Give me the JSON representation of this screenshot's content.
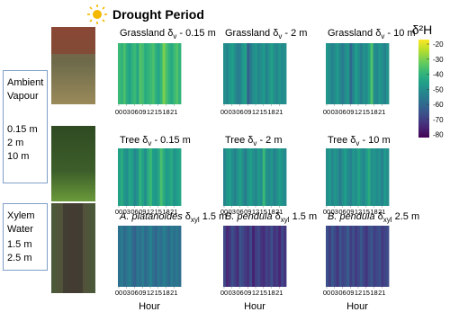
{
  "chart_data": {
    "type": "heatmap",
    "title": "Drought Period",
    "colorbar_label": "δ²H",
    "symbol": "δ",
    "xlabel": "Hour",
    "colormap": "viridis",
    "clim": [
      -82,
      -17
    ],
    "cticks": [
      -20,
      -30,
      -40,
      -50,
      -60,
      -70,
      -80
    ],
    "xlim": [
      0,
      24
    ],
    "xticks": [
      {
        "value": 0,
        "label": "00"
      },
      {
        "value": 3,
        "label": "03"
      },
      {
        "value": 6,
        "label": "06"
      },
      {
        "value": 9,
        "label": "09"
      },
      {
        "value": 12,
        "label": "12"
      },
      {
        "value": 15,
        "label": "15"
      },
      {
        "value": 18,
        "label": "18"
      },
      {
        "value": 21,
        "label": "21"
      }
    ],
    "x": [
      0,
      1,
      2,
      3,
      4,
      5,
      6,
      7,
      8,
      9,
      10,
      11,
      12,
      13,
      14,
      15,
      16,
      17,
      18,
      19,
      20,
      21,
      22,
      23
    ],
    "groups": [
      {
        "lines": [
          "Ambient",
          "Vapour"
        ],
        "heights": [
          "0.15 m",
          "2 m",
          "10 m"
        ]
      },
      {
        "lines": [
          "Xylem",
          "Water"
        ],
        "heights": [
          "1.5 m",
          "2.5 m"
        ]
      }
    ],
    "panels": [
      {
        "prefix": "Grassland ",
        "italic": false,
        "sub": "v",
        "suffix": " - 0.15 m",
        "values": [
          -38,
          -40,
          -36,
          -42,
          -45,
          -40,
          -38,
          -44,
          -35,
          -37,
          -42,
          -40,
          -38,
          -36,
          -41,
          -44,
          -39,
          -30,
          -36,
          -40,
          -43,
          -38,
          -35,
          -40
        ]
      },
      {
        "prefix": "Grassland ",
        "italic": false,
        "sub": "v",
        "suffix": " - 2 m",
        "values": [
          -50,
          -52,
          -48,
          -46,
          -50,
          -55,
          -53,
          -48,
          -45,
          -62,
          -55,
          -50,
          -48,
          -52,
          -50,
          -47,
          -53,
          -49,
          -45,
          -50,
          -52,
          -48,
          -51,
          -50
        ]
      },
      {
        "prefix": "Grassland ",
        "italic": false,
        "sub": "v",
        "suffix": " - 10 m",
        "values": [
          -48,
          -50,
          -53,
          -50,
          -47,
          -52,
          -55,
          -50,
          -48,
          -60,
          -52,
          -46,
          -50,
          -54,
          -49,
          -51,
          -45,
          -35,
          -50,
          -52,
          -48,
          -50,
          -53,
          -49
        ]
      },
      {
        "prefix": "Tree ",
        "italic": false,
        "sub": "v",
        "suffix": " - 0.15 m",
        "values": [
          -45,
          -42,
          -48,
          -50,
          -44,
          -46,
          -52,
          -48,
          -40,
          -45,
          -50,
          -42,
          -38,
          -46,
          -48,
          -44,
          -36,
          -42,
          -47,
          -45,
          -43,
          -49,
          -46,
          -44
        ]
      },
      {
        "prefix": "Tree ",
        "italic": false,
        "sub": "v",
        "suffix": " - 2 m",
        "values": [
          -52,
          -48,
          -46,
          -50,
          -53,
          -49,
          -45,
          -50,
          -55,
          -48,
          -46,
          -50,
          -52,
          -47,
          -50,
          -38,
          -49,
          -51,
          -48,
          -53,
          -50,
          -46,
          -49,
          -51
        ]
      },
      {
        "prefix": "Tree ",
        "italic": false,
        "sub": "v",
        "suffix": " - 10 m",
        "values": [
          -50,
          -47,
          -52,
          -48,
          -50,
          -55,
          -49,
          -46,
          -51,
          -53,
          -48,
          -50,
          -45,
          -49,
          -52,
          -47,
          -42,
          -50,
          -48,
          -51,
          -49,
          -53,
          -47,
          -50
        ]
      },
      {
        "prefix": "A. platanoides",
        "italic": true,
        "sub": "xyl",
        "suffix": " 1.5 m",
        "values": [
          -58,
          -55,
          -60,
          -57,
          -54,
          -59,
          -62,
          -56,
          -58,
          -55,
          -60,
          -57,
          -53,
          -58,
          -61,
          -56,
          -59,
          -54,
          -57,
          -60,
          -55,
          -58,
          -56,
          -59
        ]
      },
      {
        "prefix": "B. pendula",
        "italic": true,
        "sub": "xyl",
        "suffix": " 1.5 m",
        "values": [
          -68,
          -75,
          -72,
          -66,
          -70,
          -74,
          -65,
          -68,
          -71,
          -73,
          -67,
          -76,
          -70,
          -68,
          -72,
          -74,
          -69,
          -71,
          -66,
          -73,
          -70,
          -75,
          -68,
          -72
        ]
      },
      {
        "prefix": "B. pendula",
        "italic": true,
        "sub": "xyl",
        "suffix": " 2.5 m",
        "values": [
          -66,
          -70,
          -64,
          -68,
          -72,
          -65,
          -69,
          -67,
          -63,
          -70,
          -66,
          -71,
          -68,
          -64,
          -69,
          -72,
          -67,
          -65,
          -70,
          -68,
          -66,
          -71,
          -69,
          -67
        ]
      }
    ]
  }
}
